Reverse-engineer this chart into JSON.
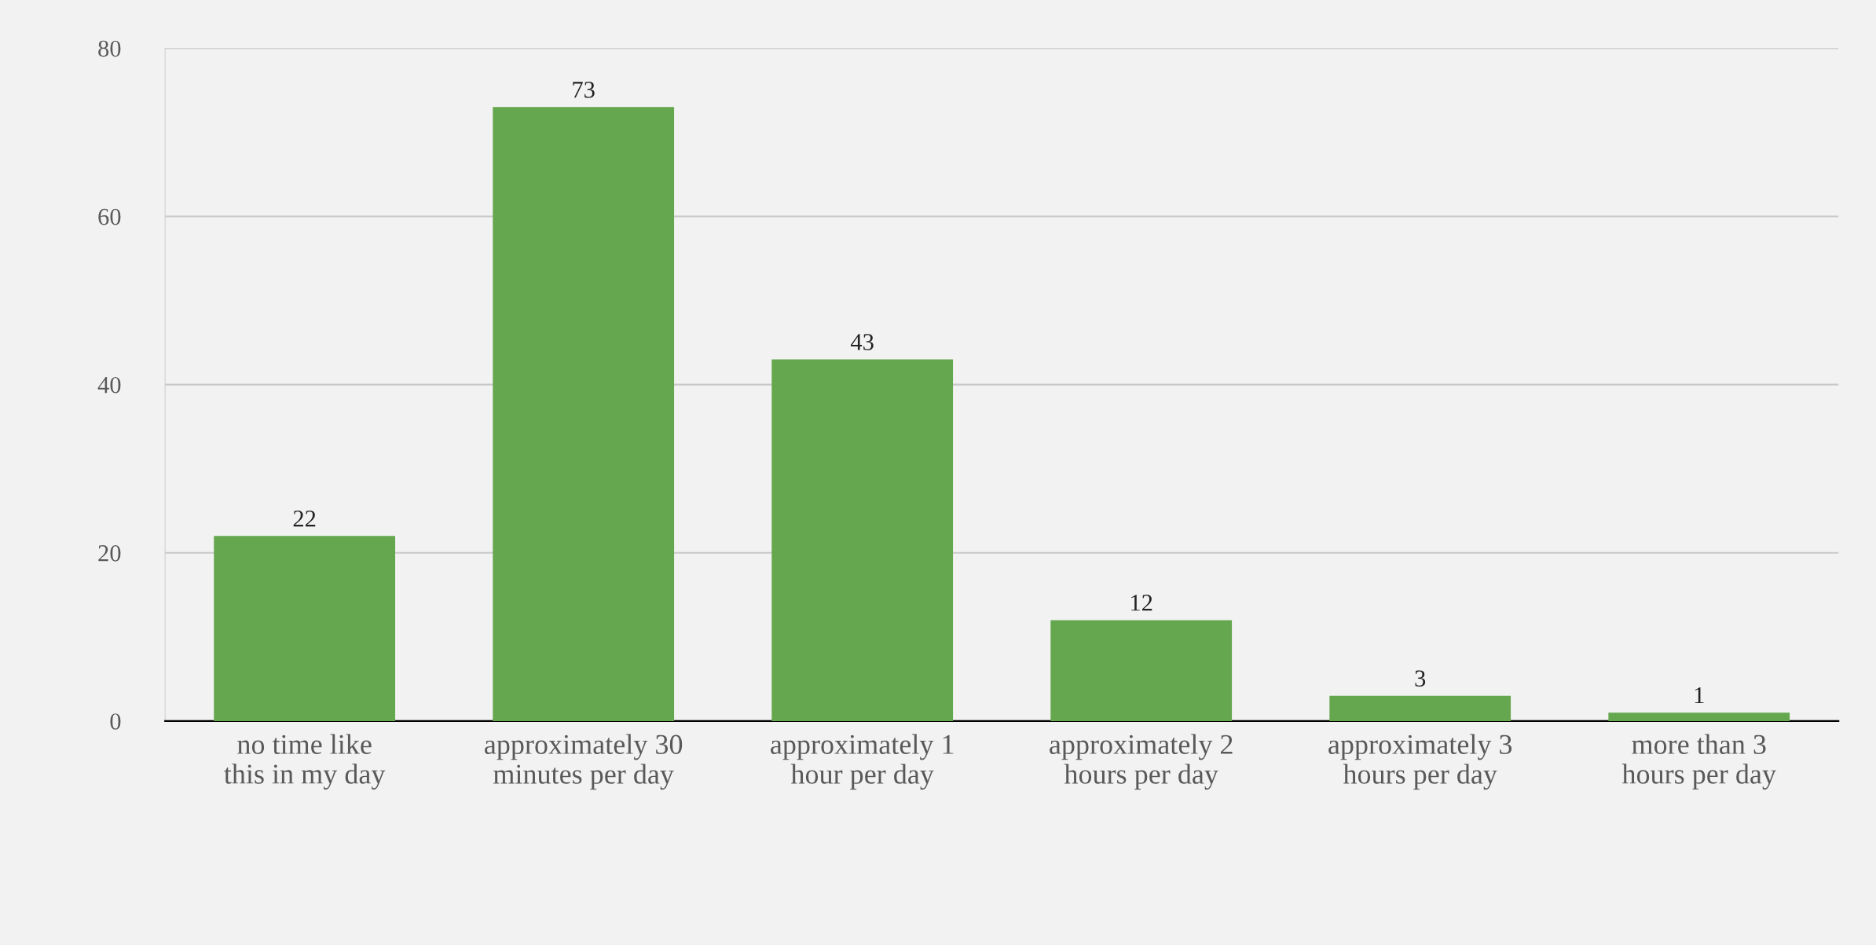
{
  "chart_data": {
    "type": "bar",
    "categories": [
      "no time like this in my day",
      "approximately 30 minutes per day",
      "approximately 1 hour per day",
      "approximately 2 hours per day",
      "approximately 3 hours per day",
      "more than 3 hours per day"
    ],
    "values": [
      22,
      73,
      43,
      12,
      3,
      1
    ],
    "color": "#65a74e",
    "ylim": [
      0,
      80
    ],
    "yticks": [
      0,
      20,
      40,
      60,
      80
    ],
    "grid": "y",
    "data_labels": true
  }
}
